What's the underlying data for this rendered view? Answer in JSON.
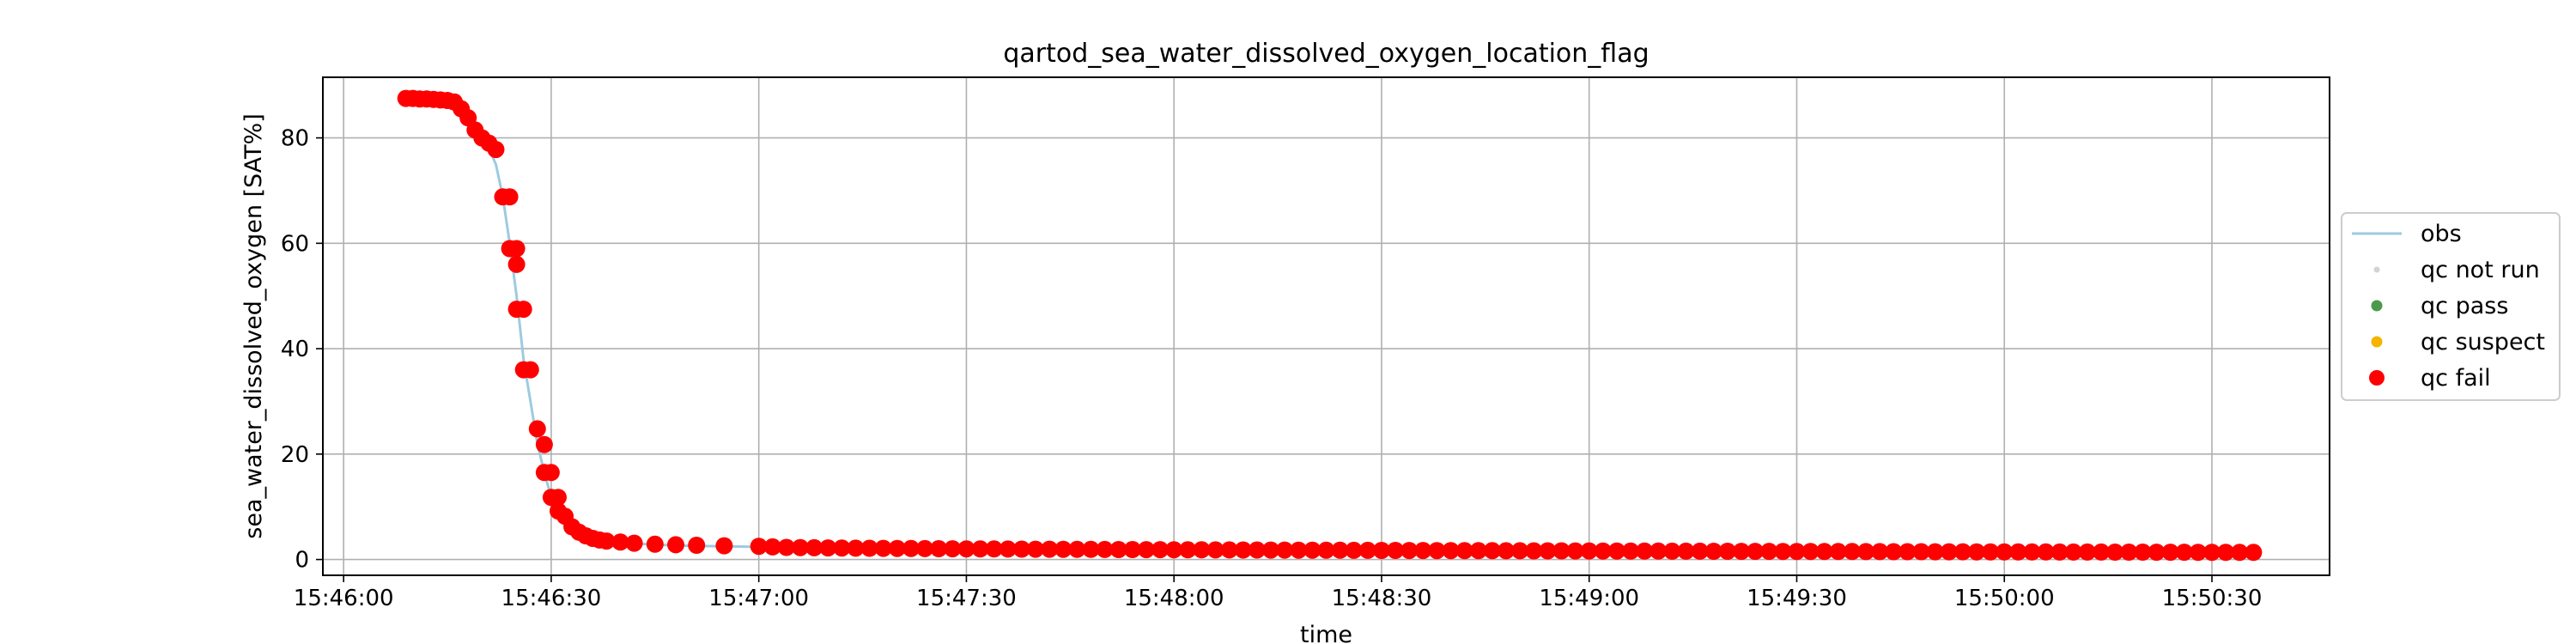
{
  "chart_data": {
    "type": "scatter",
    "title": "qartod_sea_water_dissolved_oxygen_location_flag",
    "xlabel": "time",
    "ylabel": "sea_water_dissolved_oxygen [SAT%]",
    "xlim": [
      "15:45:57",
      "15:50:47"
    ],
    "ylim": [
      -3,
      91.5
    ],
    "x_ticks": [
      "15:46:00",
      "15:46:30",
      "15:47:00",
      "15:47:30",
      "15:48:00",
      "15:48:30",
      "15:49:00",
      "15:49:30",
      "15:50:00",
      "15:50:30"
    ],
    "y_ticks": [
      0,
      20,
      40,
      60,
      80
    ],
    "grid": true,
    "legend_position": "right",
    "legend": [
      {
        "label": "obs",
        "kind": "line",
        "color": "#9ecae1"
      },
      {
        "label": "qc not run",
        "kind": "dot",
        "color": "#d3d3d3"
      },
      {
        "label": "qc pass",
        "kind": "dot",
        "color": "#4a9a4a"
      },
      {
        "label": "qc suspect",
        "kind": "dot",
        "color": "#f4b400"
      },
      {
        "label": "qc fail",
        "kind": "dot",
        "color": "#ff0000"
      }
    ],
    "series": [
      {
        "name": "obs",
        "kind": "line",
        "color": "#9ecae1",
        "points": [
          [
            "15:46:09",
            87.5
          ],
          [
            "15:46:12",
            87.4
          ],
          [
            "15:46:15",
            87.2
          ],
          [
            "15:46:16",
            86.8
          ],
          [
            "15:46:17",
            85.5
          ],
          [
            "15:46:18",
            83.0
          ],
          [
            "15:46:19",
            81.0
          ],
          [
            "15:46:20",
            79.5
          ],
          [
            "15:46:21",
            78.0
          ],
          [
            "15:46:22",
            75.0
          ],
          [
            "15:46:23",
            68.9
          ],
          [
            "15:46:24",
            60.0
          ],
          [
            "15:46:25",
            50.0
          ],
          [
            "15:46:26",
            38.0
          ],
          [
            "15:46:27",
            30.0
          ],
          [
            "15:46:28",
            22.0
          ],
          [
            "15:46:29",
            16.5
          ],
          [
            "15:46:30",
            11.8
          ],
          [
            "15:46:31",
            8.5
          ],
          [
            "15:46:32",
            6.5
          ],
          [
            "15:46:34",
            4.8
          ],
          [
            "15:46:36",
            3.8
          ],
          [
            "15:46:40",
            3.2
          ],
          [
            "15:46:45",
            2.8
          ],
          [
            "15:46:50",
            2.6
          ],
          [
            "15:47:00",
            2.4
          ],
          [
            "15:47:15",
            2.1
          ],
          [
            "15:47:30",
            1.9
          ],
          [
            "15:48:00",
            1.7
          ],
          [
            "15:48:30",
            1.6
          ],
          [
            "15:49:00",
            1.5
          ],
          [
            "15:49:30",
            1.45
          ],
          [
            "15:50:00",
            1.4
          ],
          [
            "15:50:37",
            1.35
          ]
        ]
      },
      {
        "name": "qc fail",
        "kind": "dots",
        "color": "#ff0000",
        "points": [
          [
            "15:46:09",
            87.5
          ],
          [
            "15:46:10",
            87.5
          ],
          [
            "15:46:11",
            87.4
          ],
          [
            "15:46:12",
            87.4
          ],
          [
            "15:46:13",
            87.3
          ],
          [
            "15:46:14",
            87.2
          ],
          [
            "15:46:15",
            87.1
          ],
          [
            "15:46:16",
            86.8
          ],
          [
            "15:46:17",
            85.5
          ],
          [
            "15:46:18",
            83.8
          ],
          [
            "15:46:19",
            81.5
          ],
          [
            "15:46:20",
            80.0
          ],
          [
            "15:46:21",
            79.0
          ],
          [
            "15:46:22",
            77.8
          ],
          [
            "15:46:23",
            68.8
          ],
          [
            "15:46:24",
            68.8
          ],
          [
            "15:46:24",
            59.0
          ],
          [
            "15:46:25",
            59.0
          ],
          [
            "15:46:25",
            56.0
          ],
          [
            "15:46:25",
            47.5
          ],
          [
            "15:46:26",
            47.5
          ],
          [
            "15:46:26",
            36.0
          ],
          [
            "15:46:27",
            36.0
          ],
          [
            "15:46:28",
            24.8
          ],
          [
            "15:46:29",
            21.8
          ],
          [
            "15:46:29",
            16.5
          ],
          [
            "15:46:30",
            16.5
          ],
          [
            "15:46:30",
            11.8
          ],
          [
            "15:46:31",
            11.8
          ],
          [
            "15:46:31",
            9.2
          ],
          [
            "15:46:32",
            8.2
          ],
          [
            "15:46:33",
            6.2
          ],
          [
            "15:46:34",
            5.2
          ],
          [
            "15:46:35",
            4.5
          ],
          [
            "15:46:36",
            4.0
          ],
          [
            "15:46:37",
            3.7
          ],
          [
            "15:46:38",
            3.5
          ],
          [
            "15:46:40",
            3.3
          ],
          [
            "15:46:42",
            3.1
          ],
          [
            "15:46:45",
            2.9
          ],
          [
            "15:46:48",
            2.8
          ],
          [
            "15:46:51",
            2.7
          ],
          [
            "15:46:55",
            2.6
          ],
          [
            "15:47:00",
            2.5
          ]
        ],
        "continuation": {
          "from": "15:47:02",
          "to": "15:50:37",
          "interval_seconds": 2,
          "start_value": 2.4,
          "end_value": 1.35
        }
      }
    ]
  }
}
